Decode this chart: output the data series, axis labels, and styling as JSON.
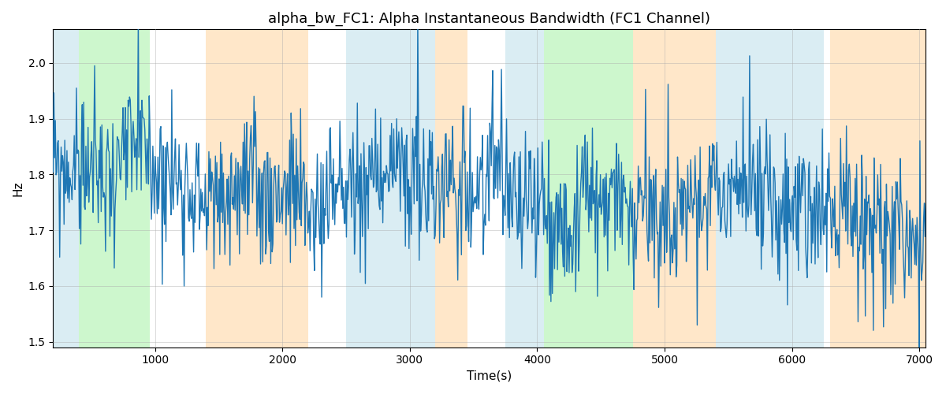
{
  "title": "alpha_bw_FC1: Alpha Instantaneous Bandwidth (FC1 Channel)",
  "xlabel": "Time(s)",
  "ylabel": "Hz",
  "xlim": [
    200,
    7050
  ],
  "ylim": [
    1.49,
    2.06
  ],
  "line_color": "#1f77b4",
  "line_width": 1.0,
  "grid": true,
  "background_color": "#ffffff",
  "bands": [
    {
      "xmin": 200,
      "xmax": 400,
      "color": "#add8e6",
      "alpha": 0.45
    },
    {
      "xmin": 400,
      "xmax": 960,
      "color": "#90ee90",
      "alpha": 0.45
    },
    {
      "xmin": 1400,
      "xmax": 2200,
      "color": "#ffd59e",
      "alpha": 0.55
    },
    {
      "xmin": 2500,
      "xmax": 3200,
      "color": "#add8e6",
      "alpha": 0.45
    },
    {
      "xmin": 3200,
      "xmax": 3450,
      "color": "#ffd59e",
      "alpha": 0.55
    },
    {
      "xmin": 3750,
      "xmax": 4050,
      "color": "#add8e6",
      "alpha": 0.45
    },
    {
      "xmin": 4050,
      "xmax": 4750,
      "color": "#90ee90",
      "alpha": 0.45
    },
    {
      "xmin": 4750,
      "xmax": 5400,
      "color": "#ffd59e",
      "alpha": 0.55
    },
    {
      "xmin": 5400,
      "xmax": 6250,
      "color": "#add8e6",
      "alpha": 0.45
    },
    {
      "xmin": 6300,
      "xmax": 7050,
      "color": "#ffd59e",
      "alpha": 0.55
    }
  ],
  "yticks": [
    1.5,
    1.6,
    1.7,
    1.8,
    1.9,
    2.0
  ],
  "xticks": [
    1000,
    2000,
    3000,
    4000,
    5000,
    6000,
    7000
  ],
  "figsize": [
    12.0,
    5.0
  ],
  "dpi": 100,
  "title_fontsize": 13,
  "label_fontsize": 11,
  "seed": 99,
  "n_points": 1200,
  "t_start": 200,
  "t_end": 7050
}
